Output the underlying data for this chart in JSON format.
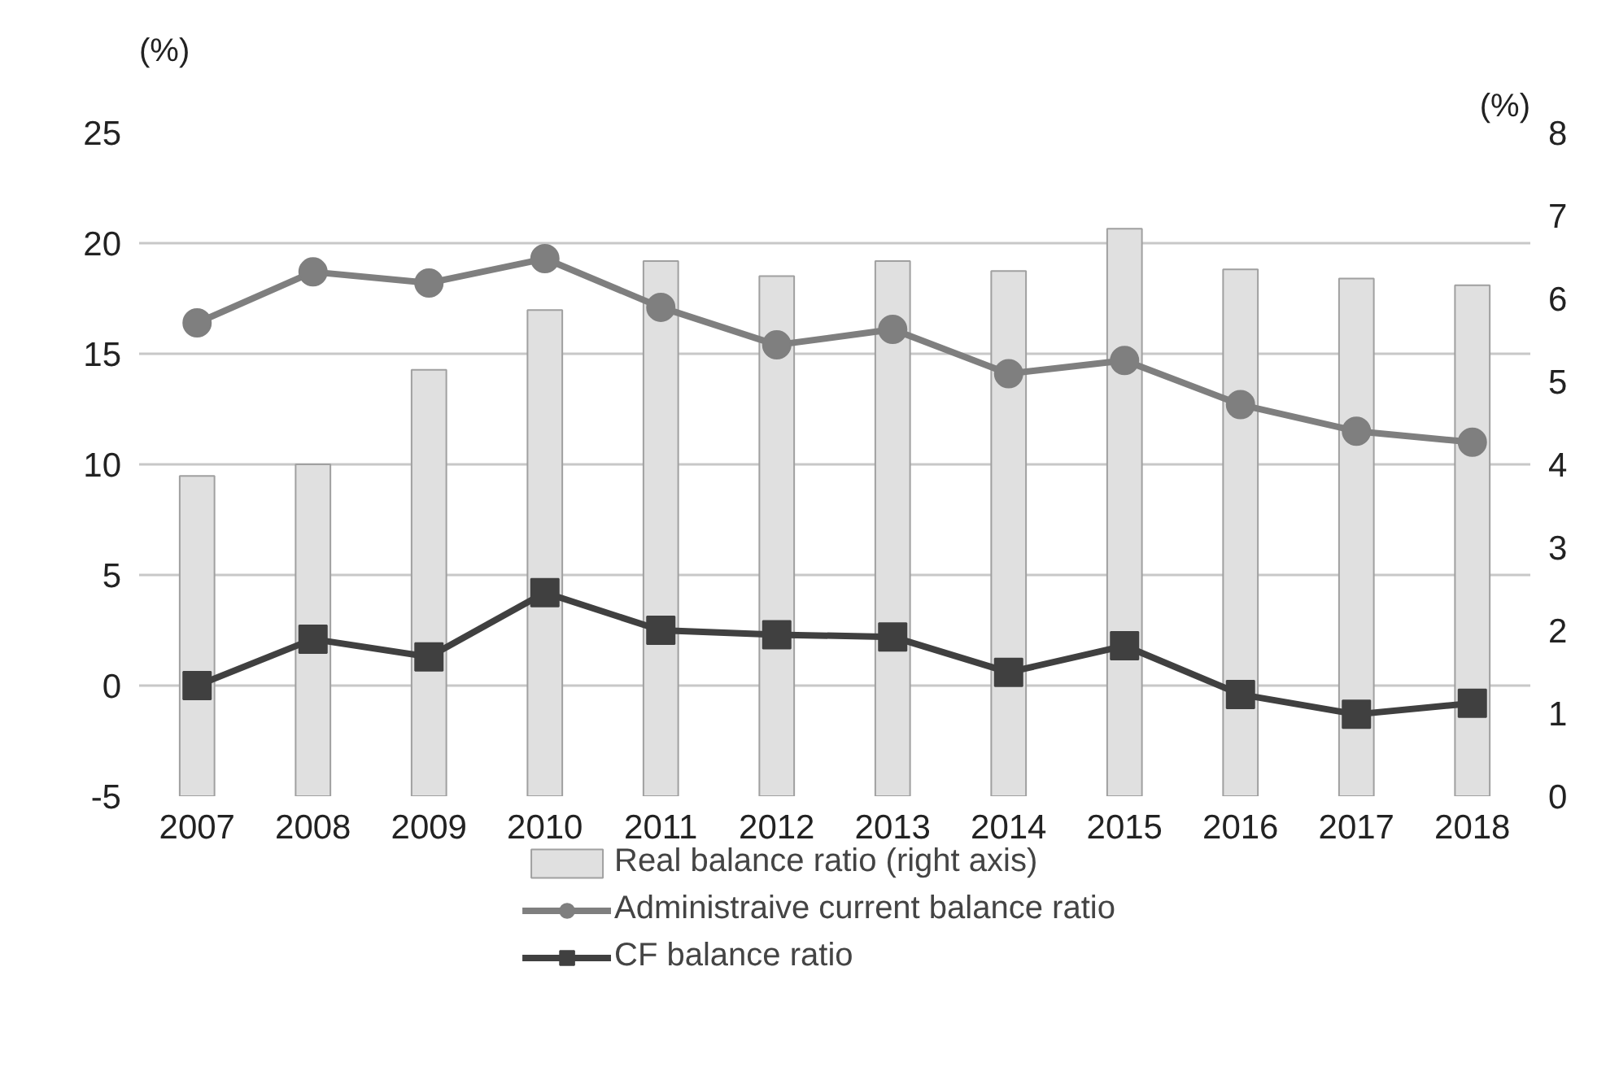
{
  "chart_data": {
    "type": "line",
    "ylabel": "(%)",
    "y2label": "(%)",
    "categories": [
      "2007",
      "2008",
      "2009",
      "2010",
      "2011",
      "2012",
      "2013",
      "2014",
      "2015",
      "2016",
      "2017",
      "2018"
    ],
    "series": [
      {
        "name": "Real balance ratio (right axis)",
        "type": "bar",
        "axis": "y2",
        "color": "#e0e0e0",
        "values": [
          3.86,
          4.0,
          5.14,
          5.86,
          6.45,
          6.27,
          6.45,
          6.33,
          6.84,
          6.35,
          6.24,
          6.16
        ]
      },
      {
        "name": "Administraive current balance ratio",
        "color": "#7f7f7f",
        "marker": "circle",
        "values": [
          16.4,
          18.7,
          18.2,
          19.3,
          17.1,
          15.4,
          16.1,
          14.1,
          14.7,
          12.7,
          11.5,
          11.0
        ]
      },
      {
        "name": "CF balance ratio",
        "color": "#404040",
        "marker": "square",
        "values": [
          0.0,
          2.1,
          1.3,
          4.2,
          2.5,
          2.3,
          2.2,
          0.6,
          1.8,
          -0.4,
          -1.3,
          -0.8
        ]
      }
    ],
    "ylim": [
      -5,
      25
    ],
    "yticks": [
      -5,
      0,
      5,
      10,
      15,
      20,
      25
    ],
    "y2lim": [
      0,
      8
    ],
    "y2ticks": [
      0,
      1,
      2,
      3,
      4,
      5,
      6,
      7,
      8
    ],
    "grid": "y",
    "legend": "bottom",
    "line_style": "solid"
  }
}
